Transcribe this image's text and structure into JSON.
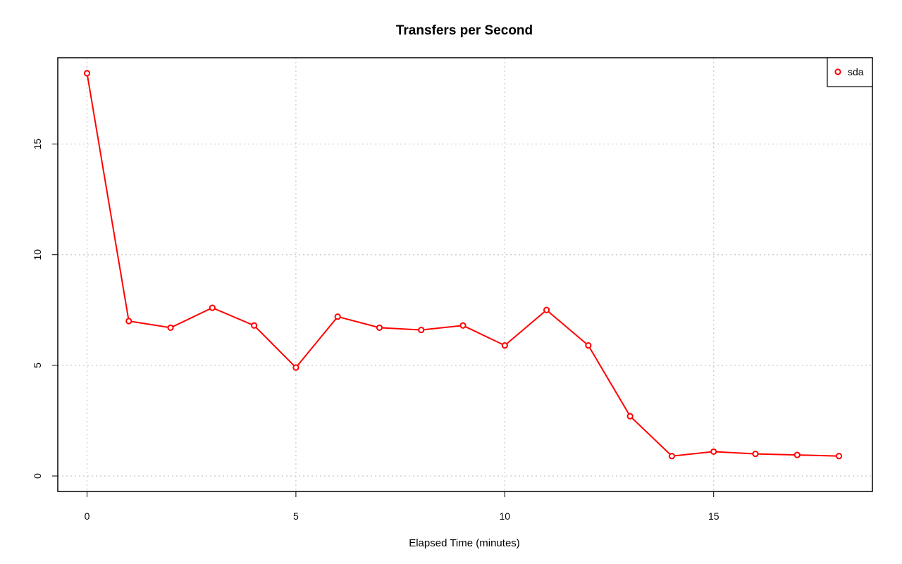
{
  "chart_data": {
    "type": "line",
    "title": "Transfers per Second",
    "xlabel": "Elapsed Time (minutes)",
    "ylabel": "",
    "xlim": [
      -0.7,
      18.8
    ],
    "ylim": [
      -0.7,
      18.9
    ],
    "x_ticks": [
      0,
      5,
      10,
      15
    ],
    "y_ticks": [
      0,
      5,
      10,
      15
    ],
    "grid": true,
    "legend_position": "top-right",
    "x": [
      0,
      1,
      2,
      3,
      4,
      5,
      6,
      7,
      8,
      9,
      10,
      11,
      12,
      13,
      14,
      15,
      16,
      17,
      18
    ],
    "series": [
      {
        "name": "sda",
        "color": "#ff0000",
        "marker": "open-circle",
        "values": [
          18.2,
          7.0,
          6.7,
          7.6,
          6.8,
          4.9,
          7.2,
          6.7,
          6.6,
          6.8,
          5.9,
          7.5,
          5.9,
          2.7,
          0.9,
          1.1,
          1.0,
          0.95,
          0.9
        ]
      }
    ]
  }
}
